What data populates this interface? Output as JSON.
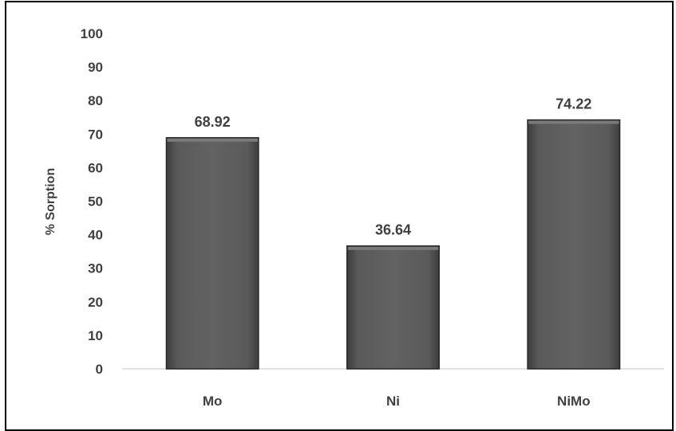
{
  "chart_data": {
    "type": "bar",
    "categories": [
      "Mo",
      "Ni",
      "NiMo"
    ],
    "values": [
      68.92,
      36.64,
      74.22
    ],
    "data_labels": [
      "68.92",
      "36.64",
      "74.22"
    ],
    "title": "",
    "xlabel": "",
    "ylabel": "% Sorption",
    "ylim": [
      0,
      100
    ],
    "yticks": [
      0,
      10,
      20,
      30,
      40,
      50,
      60,
      70,
      80,
      90,
      100
    ],
    "grid": false,
    "legend": "none",
    "bar_color": "#595959",
    "bar_edge_color": "#262626",
    "text_color": "#404040",
    "axis_color": "#d9d9d9"
  }
}
